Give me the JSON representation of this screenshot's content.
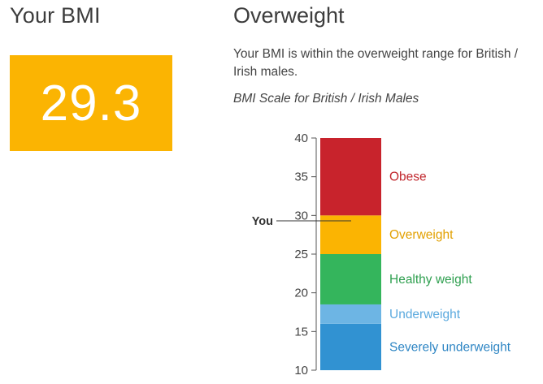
{
  "left": {
    "title": "Your BMI",
    "bmi_value": "29.3"
  },
  "right": {
    "title": "Overweight",
    "description": "Your BMI is within the overweight range for British / Irish males.",
    "scale_title": "BMI Scale for British / Irish Males"
  },
  "chart_data": {
    "type": "bar",
    "ylim": [
      10,
      40
    ],
    "ticks": [
      {
        "value": 10,
        "label": "10"
      },
      {
        "value": 15,
        "label": "15"
      },
      {
        "value": 20,
        "label": "20"
      },
      {
        "value": 25,
        "label": "25"
      },
      {
        "value": 30,
        "label": "30"
      },
      {
        "value": 35,
        "label": "35"
      },
      {
        "value": 40,
        "label": "40"
      }
    ],
    "bands": [
      {
        "name": "Severely underweight",
        "from": 10,
        "to": 16,
        "color": "#3192D2",
        "label_color": "#2F86C4"
      },
      {
        "name": "Underweight",
        "from": 16,
        "to": 18.5,
        "color": "#6DB5E4",
        "label_color": "#5AA9DE"
      },
      {
        "name": "Healthy weight",
        "from": 18.5,
        "to": 25,
        "color": "#34B55C",
        "label_color": "#2E9F4F"
      },
      {
        "name": "Overweight",
        "from": 25,
        "to": 30,
        "color": "#FBB402",
        "label_color": "#E2A000"
      },
      {
        "name": "Obese",
        "from": 30,
        "to": 40,
        "color": "#C8232C",
        "label_color": "#C1272D"
      }
    ],
    "marker": {
      "label": "You",
      "value": 29.3
    }
  }
}
